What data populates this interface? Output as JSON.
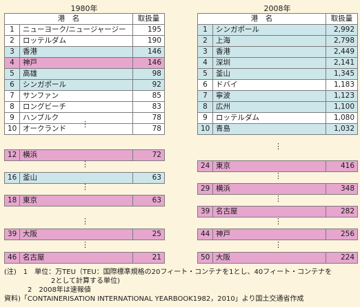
{
  "tables": {
    "y1980": {
      "title": "1980年",
      "header": {
        "port": "港　名",
        "volume": "取扱量"
      },
      "top10": [
        {
          "rank": "1",
          "port": "ニューヨーク/ニュージャージー",
          "value": "195",
          "color": "white"
        },
        {
          "rank": "2",
          "port": "ロッテルダム",
          "value": "190",
          "color": "white"
        },
        {
          "rank": "3",
          "port": "香港",
          "value": "146",
          "color": "blue"
        },
        {
          "rank": "4",
          "port": "神戸",
          "value": "146",
          "color": "pink"
        },
        {
          "rank": "5",
          "port": "高雄",
          "value": "98",
          "color": "blue"
        },
        {
          "rank": "6",
          "port": "シンガポール",
          "value": "92",
          "color": "blue"
        },
        {
          "rank": "7",
          "port": "サンファン",
          "value": "85",
          "color": "white"
        },
        {
          "rank": "8",
          "port": "ロングビーチ",
          "value": "83",
          "color": "white"
        },
        {
          "rank": "9",
          "port": "ハンブルク",
          "value": "78",
          "color": "white"
        },
        {
          "rank": "10",
          "port": "オークランド",
          "value": "78",
          "color": "white"
        }
      ],
      "extra": [
        {
          "rank": "12",
          "port": "横浜",
          "value": "72",
          "color": "pink"
        },
        {
          "rank": "16",
          "port": "釜山",
          "value": "63",
          "color": "blue"
        },
        {
          "rank": "18",
          "port": "東京",
          "value": "63",
          "color": "pink"
        },
        {
          "rank": "39",
          "port": "大阪",
          "value": "25",
          "color": "pink"
        },
        {
          "rank": "46",
          "port": "名古屋",
          "value": "21",
          "color": "pink"
        }
      ]
    },
    "y2008": {
      "title": "2008年",
      "header": {
        "port": "港　名",
        "volume": "取扱量"
      },
      "top10": [
        {
          "rank": "1",
          "port": "シンガポール",
          "value": "2,992",
          "color": "blue"
        },
        {
          "rank": "2",
          "port": "上海",
          "value": "2,798",
          "color": "blue"
        },
        {
          "rank": "3",
          "port": "香港",
          "value": "2,449",
          "color": "blue"
        },
        {
          "rank": "4",
          "port": "深圳",
          "value": "2,141",
          "color": "blue"
        },
        {
          "rank": "5",
          "port": "釜山",
          "value": "1,345",
          "color": "blue"
        },
        {
          "rank": "6",
          "port": "ドバイ",
          "value": "1,183",
          "color": "white"
        },
        {
          "rank": "7",
          "port": "寧波",
          "value": "1,123",
          "color": "blue"
        },
        {
          "rank": "8",
          "port": "広州",
          "value": "1,100",
          "color": "blue"
        },
        {
          "rank": "9",
          "port": "ロッテルダム",
          "value": "1,080",
          "color": "white"
        },
        {
          "rank": "10",
          "port": "青島",
          "value": "1,032",
          "color": "blue"
        }
      ],
      "extra": [
        {
          "rank": "24",
          "port": "東京",
          "value": "416",
          "color": "pink"
        },
        {
          "rank": "29",
          "port": "横浜",
          "value": "348",
          "color": "pink"
        },
        {
          "rank": "39",
          "port": "名古屋",
          "value": "282",
          "color": "pink"
        },
        {
          "rank": "44",
          "port": "神戸",
          "value": "256",
          "color": "pink"
        },
        {
          "rank": "50",
          "port": "大阪",
          "value": "224",
          "color": "pink"
        }
      ]
    }
  },
  "ellipsis": "⋮",
  "notes": {
    "line1": "(注)　1　単位：万TEU（TEU：国際標準規格の20フィート・コンテナを1とし、40フィート・コンテナを",
    "line2": "2として計算する単位)",
    "line3": "2　2008年は速報値",
    "line4": "資料)「CONTAINERISATION INTERNATIONAL YEARBOOK1982，2010」より国土交通省作成"
  },
  "colors": {
    "white": "#ffffff",
    "blue": "#cde6ea",
    "pink": "#e6a6ce",
    "background": "#fdf4dd"
  }
}
